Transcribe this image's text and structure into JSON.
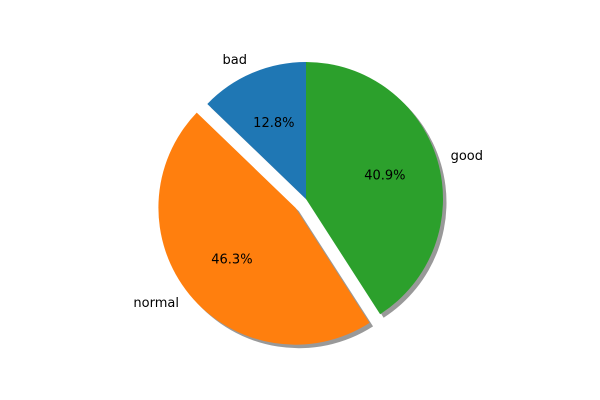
{
  "chart_data": {
    "type": "pie",
    "title": "",
    "start_angle_deg": 90,
    "direction": "counterclockwise",
    "shadow": true,
    "slices": [
      {
        "label": "bad",
        "value": 12.8,
        "pct_label": "12.8%",
        "color": "#1f77b4",
        "explode": 0
      },
      {
        "label": "normal",
        "value": 46.3,
        "pct_label": "46.3%",
        "color": "#ff7f0e",
        "explode": 0.1
      },
      {
        "label": "good",
        "value": 40.9,
        "pct_label": "40.9%",
        "color": "#2ca02c",
        "explode": 0
      }
    ]
  }
}
